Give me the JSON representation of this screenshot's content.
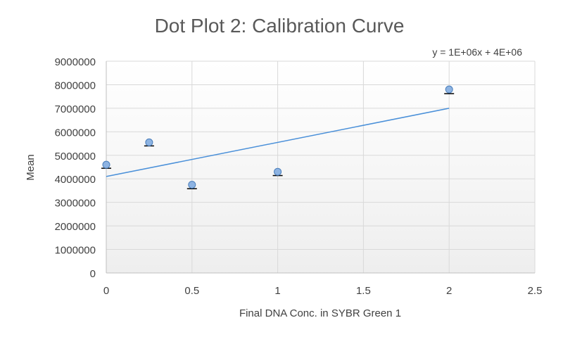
{
  "chart_data": {
    "type": "scatter",
    "title": "Dot Plot 2: Calibration Curve",
    "xlabel": "Final DNA Conc. in SYBR Green 1",
    "ylabel": "Mean",
    "xlim": [
      0,
      2.5
    ],
    "ylim": [
      0,
      9000000
    ],
    "x_ticks": [
      0,
      0.5,
      1,
      1.5,
      2,
      2.5
    ],
    "x_tick_labels": [
      "0",
      "0.5",
      "1",
      "1.5",
      "2",
      "2.5"
    ],
    "y_ticks": [
      0,
      1000000,
      2000000,
      3000000,
      4000000,
      5000000,
      6000000,
      7000000,
      8000000,
      9000000
    ],
    "y_tick_labels": [
      "0",
      "1000000",
      "2000000",
      "3000000",
      "4000000",
      "5000000",
      "6000000",
      "7000000",
      "8000000",
      "9000000"
    ],
    "grid": true,
    "series": [
      {
        "name": "Mean",
        "x": [
          0,
          0.25,
          0.5,
          1,
          2
        ],
        "y": [
          4600000,
          5550000,
          3750000,
          4300000,
          7800000
        ],
        "error_bars": [
          150000,
          150000,
          170000,
          160000,
          180000
        ],
        "marker_color": "#8db3e2",
        "marker_edge": "#4a7ebb"
      }
    ],
    "trendline": {
      "equation": "y = 1E+06x + 4E+06",
      "x": [
        0,
        2
      ],
      "y": [
        4100000,
        7000000
      ],
      "color": "#4a90d9"
    }
  }
}
